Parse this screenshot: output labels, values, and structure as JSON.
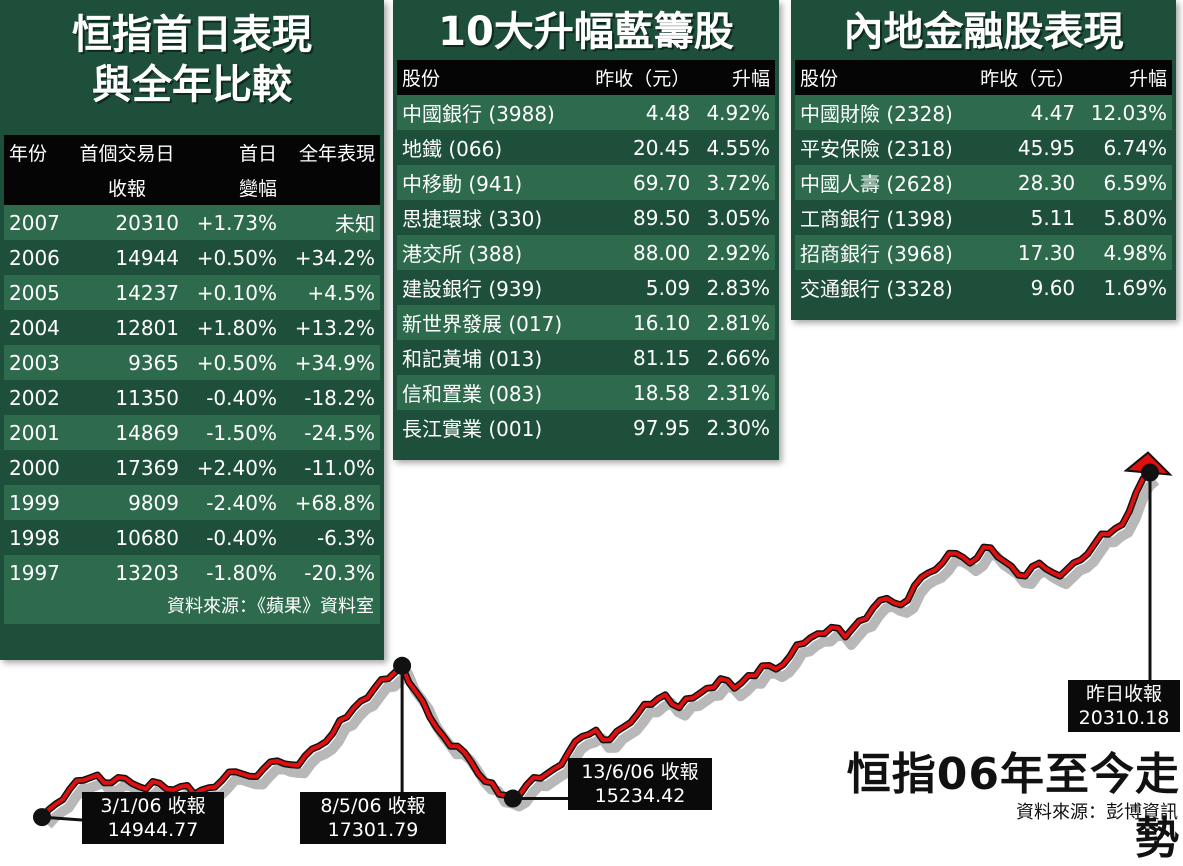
{
  "left_panel": {
    "title_line1": "恒指首日表現",
    "title_line2": "與全年比較",
    "headers": [
      "年份",
      "首個交易日",
      "首日",
      "全年表現"
    ],
    "headers2": [
      "",
      "收報",
      "變幅",
      ""
    ],
    "rows": [
      [
        "2007",
        "20310",
        "+1.73%",
        "未知"
      ],
      [
        "2006",
        "14944",
        "+0.50%",
        "+34.2%"
      ],
      [
        "2005",
        "14237",
        "+0.10%",
        "+4.5%"
      ],
      [
        "2004",
        "12801",
        "+1.80%",
        "+13.2%"
      ],
      [
        "2003",
        "9365",
        "+0.50%",
        "+34.9%"
      ],
      [
        "2002",
        "11350",
        "-0.40%",
        "-18.2%"
      ],
      [
        "2001",
        "14869",
        "-1.50%",
        "-24.5%"
      ],
      [
        "2000",
        "17369",
        "+2.40%",
        "-11.0%"
      ],
      [
        "1999",
        "9809",
        "-2.40%",
        "+68.8%"
      ],
      [
        "1998",
        "10680",
        "-0.40%",
        "-6.3%"
      ],
      [
        "1997",
        "13203",
        "-1.80%",
        "-20.3%"
      ]
    ],
    "source": "資料來源：《蘋果》資料室"
  },
  "middle_panel": {
    "title": "10大升幅藍籌股",
    "headers": [
      "股份",
      "昨收（元）",
      "升幅"
    ],
    "rows": [
      [
        "中國銀行 (3988)",
        "4.48",
        "4.92%"
      ],
      [
        "地鐵 (066)",
        "20.45",
        "4.55%"
      ],
      [
        "中移動 (941)",
        "69.70",
        "3.72%"
      ],
      [
        "思捷環球 (330)",
        "89.50",
        "3.05%"
      ],
      [
        "港交所 (388)",
        "88.00",
        "2.92%"
      ],
      [
        "建設銀行 (939)",
        "5.09",
        "2.83%"
      ],
      [
        "新世界發展 (017)",
        "16.10",
        "2.81%"
      ],
      [
        "和記黃埔 (013)",
        "81.15",
        "2.66%"
      ],
      [
        "信和置業 (083)",
        "18.58",
        "2.31%"
      ],
      [
        "長江實業 (001)",
        "97.95",
        "2.30%"
      ]
    ]
  },
  "right_panel": {
    "title": "內地金融股表現",
    "headers": [
      "股份",
      "昨收（元）",
      "升幅"
    ],
    "rows": [
      [
        "中國財險 (2328)",
        "4.47",
        "12.03%"
      ],
      [
        "平安保險 (2318)",
        "45.95",
        "6.74%"
      ],
      [
        "中國人壽 (2628)",
        "28.30",
        "6.59%"
      ],
      [
        "工商銀行 (1398)",
        "5.11",
        "5.80%"
      ],
      [
        "招商銀行 (3968)",
        "17.30",
        "4.98%"
      ],
      [
        "交通銀行 (3328)",
        "9.60",
        "1.69%"
      ]
    ]
  },
  "chart_data": {
    "type": "line",
    "title": "恒指06年至今走勢",
    "source": "資料來源：彭博資訊",
    "series": [
      {
        "values": [
          14944.77,
          15150,
          15380,
          15520,
          15600,
          15480,
          15550,
          15420,
          15500,
          15380,
          15420,
          15300,
          15400,
          15520,
          15650,
          15580,
          15700,
          15820,
          15760,
          15900,
          16050,
          16250,
          16500,
          16750,
          16950,
          17100,
          17301.79,
          16900,
          16500,
          16200,
          16050,
          15800,
          15500,
          15300,
          15234.42,
          15450,
          15550,
          15700,
          15950,
          16200,
          16300,
          16150,
          16350,
          16550,
          16700,
          16850,
          16650,
          16800,
          16950,
          17100,
          16950,
          17150,
          17300,
          17250,
          17450,
          17650,
          17800,
          17900,
          17750,
          18000,
          18200,
          18350,
          18250,
          18550,
          18750,
          18900,
          19050,
          18900,
          19150,
          19000,
          18850,
          18700,
          18900,
          18750,
          18800,
          18950,
          19200,
          19350,
          19500,
          20000,
          20310.18
        ],
        "annotations": [
          {
            "index": 0,
            "label": "3/1/06 收報",
            "value": "14944.77"
          },
          {
            "index": 26,
            "label": "8/5/06 收報",
            "value": "17301.79"
          },
          {
            "index": 34,
            "label": "13/6/06 收報",
            "value": "15234.42"
          },
          {
            "index": 80,
            "label": "昨日收報",
            "value": "20310.18"
          }
        ]
      }
    ]
  }
}
